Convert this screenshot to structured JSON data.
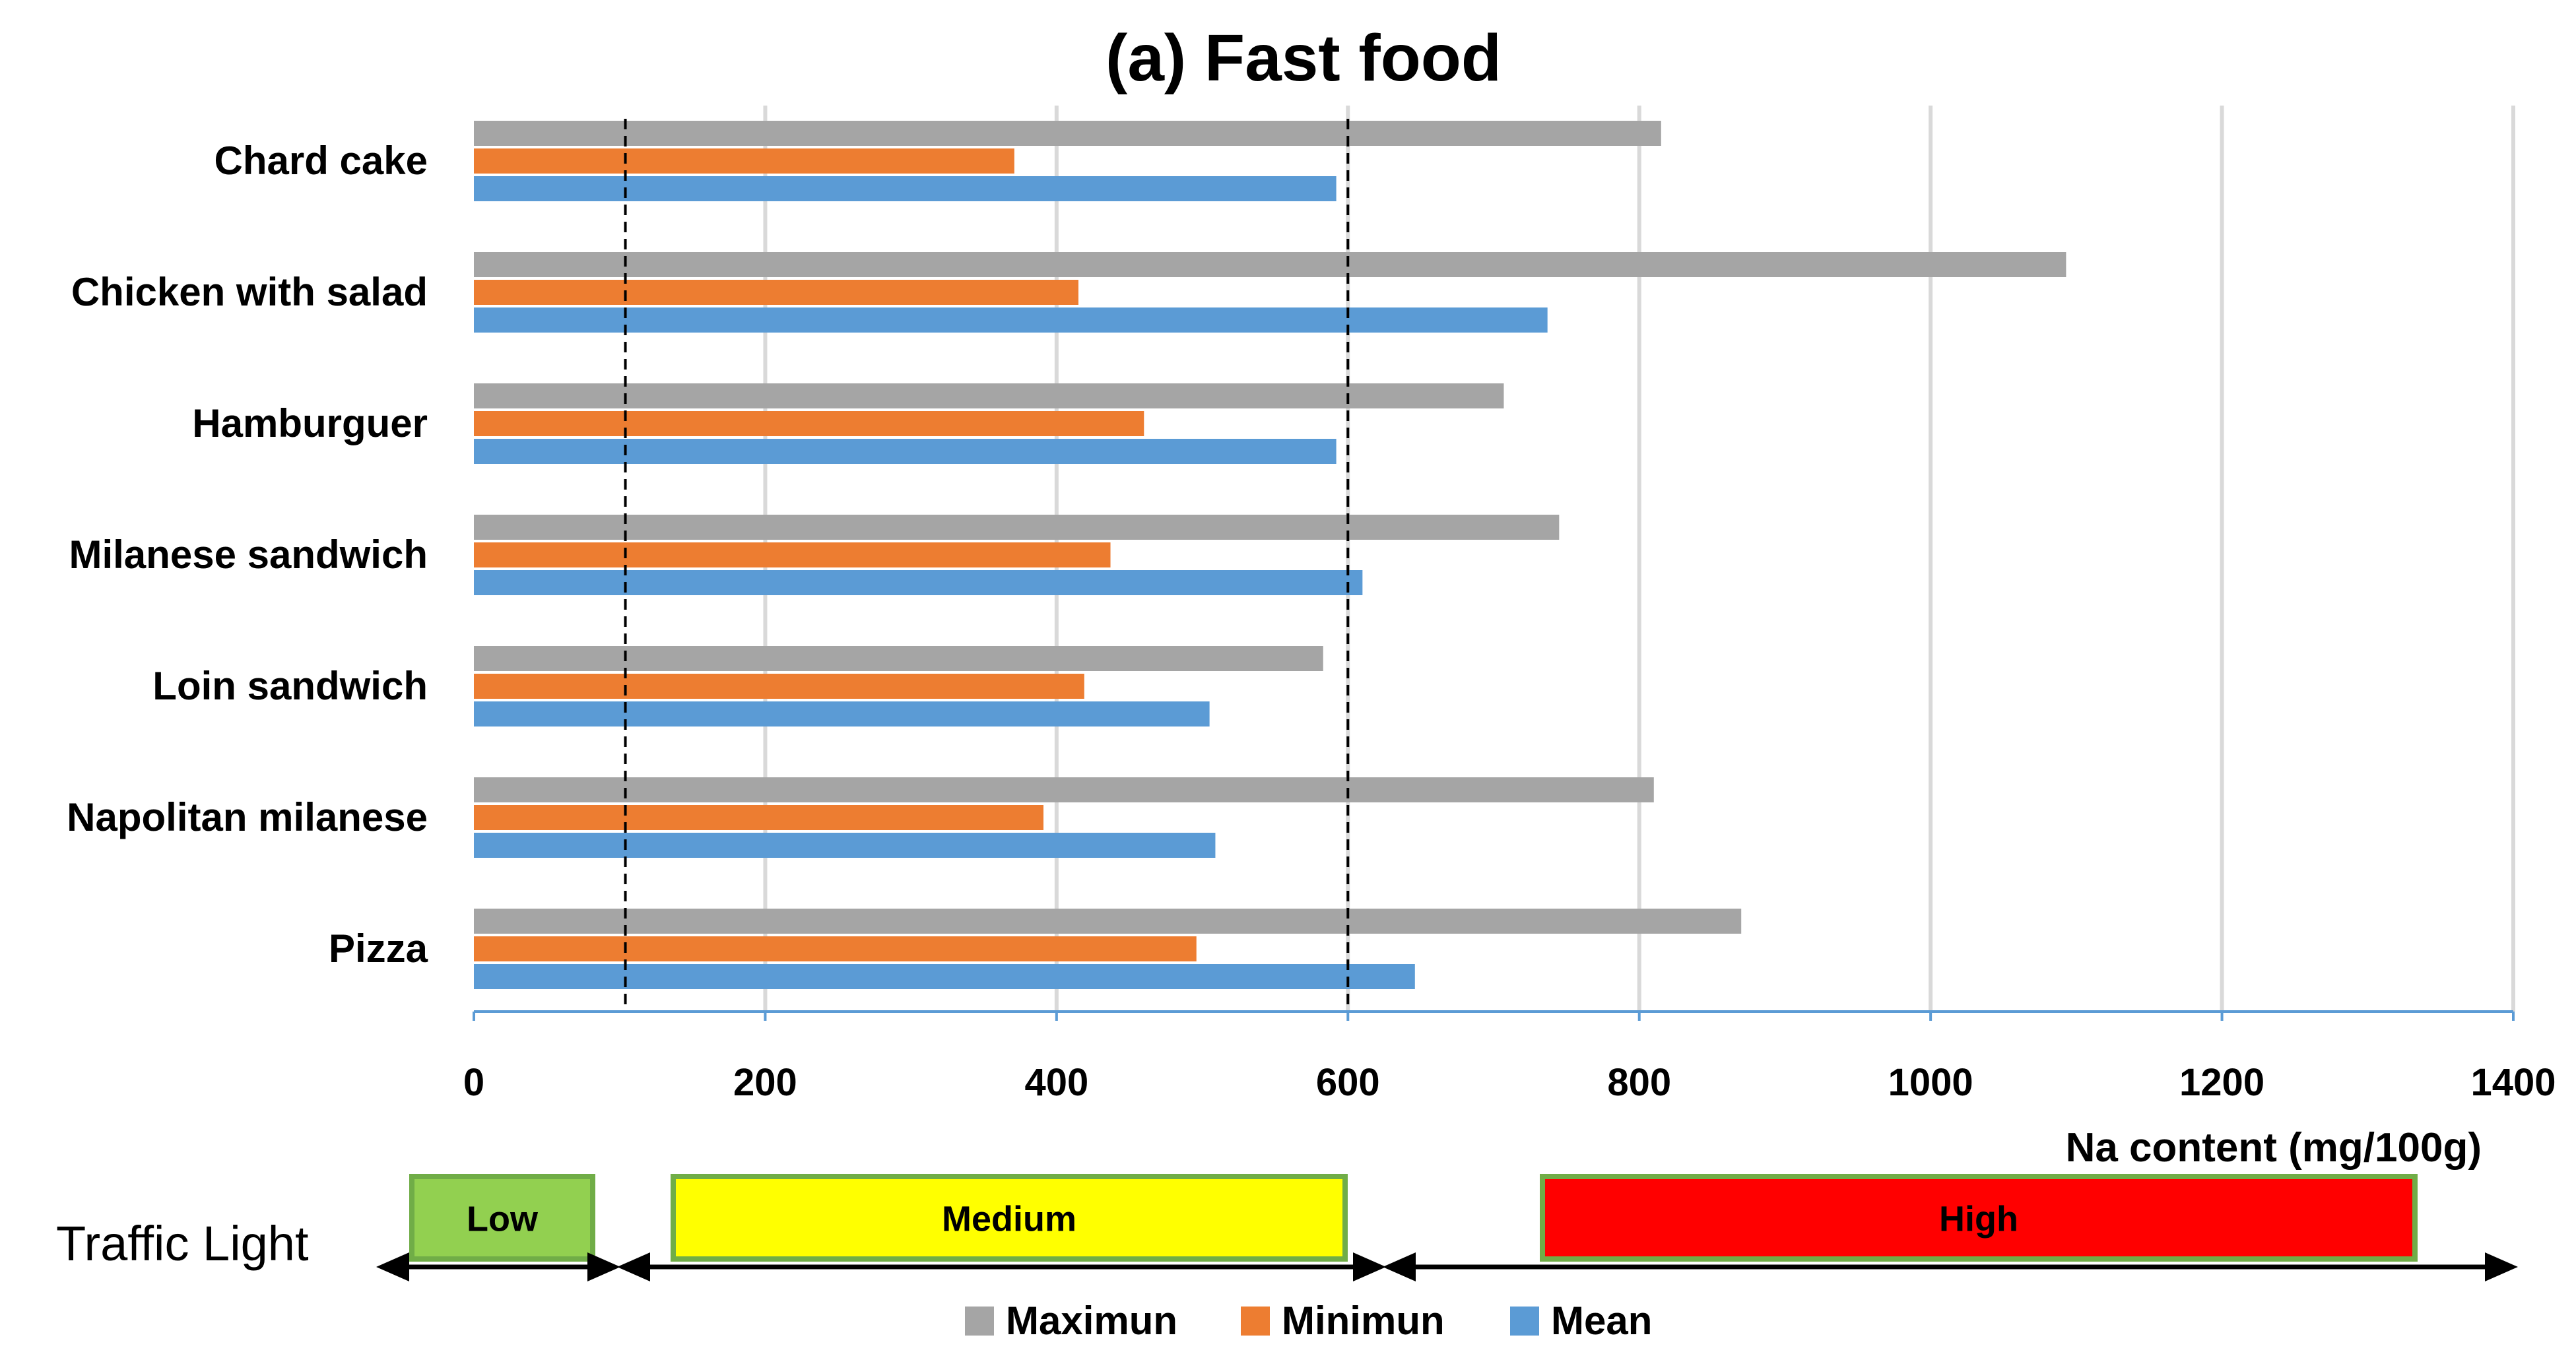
{
  "chart_data": {
    "type": "bar",
    "orientation": "horizontal",
    "title": "(a) Fast food",
    "xlabel": "Na content (mg/100g)",
    "ylabel": "",
    "xlim": [
      0,
      1400
    ],
    "x_ticks": [
      0,
      200,
      400,
      600,
      800,
      1000,
      1200,
      1400
    ],
    "grid": true,
    "categories": [
      "Chard cake",
      "Chicken with salad",
      "Hamburguer",
      "Milanese sandwich",
      "Loin sandwich",
      "Napolitan milanese",
      "Pizza"
    ],
    "series": [
      {
        "name": "Maximun",
        "color": "#a5a5a5",
        "values": [
          815,
          1093,
          707,
          745,
          583,
          810,
          870
        ]
      },
      {
        "name": "Minimun",
        "color": "#ed7d31",
        "values": [
          371,
          415,
          460,
          437,
          419,
          391,
          496
        ]
      },
      {
        "name": "Mean",
        "color": "#5b9bd5",
        "values": [
          592,
          737,
          592,
          610,
          505,
          509,
          646
        ]
      }
    ],
    "reference_lines": [
      {
        "value": 104,
        "style": "dashed"
      },
      {
        "value": 600,
        "style": "dashed"
      }
    ],
    "legend": {
      "position": "bottom"
    }
  },
  "traffic_light": {
    "label": "Traffic Light",
    "bands": [
      {
        "name": "Low",
        "color": "#92d050",
        "from": 0,
        "to": 104
      },
      {
        "name": "Medium",
        "color": "#ffff00",
        "from": 104,
        "to": 600
      },
      {
        "name": "High",
        "color": "#ff0000",
        "from": 600,
        "to": 1400
      }
    ]
  }
}
